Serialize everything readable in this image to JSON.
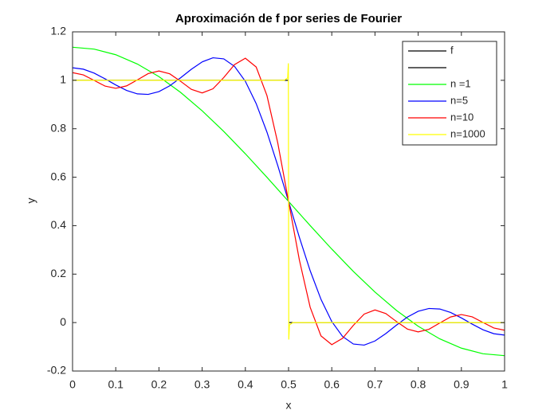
{
  "chart_data": {
    "type": "line",
    "title": "Aproximación de f por series de Fourier",
    "xlabel": "x",
    "ylabel": "y",
    "xlim": [
      0,
      1
    ],
    "ylim": [
      -0.2,
      1.2
    ],
    "xticks": [
      0,
      0.1,
      0.2,
      0.3,
      0.4,
      0.5,
      0.6,
      0.7,
      0.8,
      0.9,
      1
    ],
    "yticks": [
      -0.2,
      0,
      0.2,
      0.4,
      0.6,
      0.8,
      1,
      1.2
    ],
    "grid": false,
    "legend": "top-right",
    "series": [
      {
        "name": "f",
        "color": "#000000",
        "x": [
          0,
          0.5
        ],
        "values": [
          1,
          1
        ]
      },
      {
        "name": null,
        "color": "#000000",
        "x": [
          0.5,
          1
        ],
        "values": [
          0,
          0
        ]
      },
      {
        "name": "n =1",
        "color": "#00ff00",
        "x": [
          0,
          0.05,
          0.1,
          0.15,
          0.2,
          0.25,
          0.3,
          0.35,
          0.4,
          0.45,
          0.5,
          0.55,
          0.6,
          0.65,
          0.7,
          0.75,
          0.8,
          0.85,
          0.9,
          0.95,
          1
        ],
        "values": [
          1.1366,
          1.1288,
          1.1055,
          1.0672,
          1.015,
          0.9502,
          0.8742,
          0.789,
          0.6967,
          0.5996,
          0.5,
          0.4004,
          0.3033,
          0.211,
          0.1258,
          0.0498,
          -0.015,
          -0.0672,
          -0.1055,
          -0.1288,
          -0.1366
        ]
      },
      {
        "name": "n=5",
        "color": "#0000ff",
        "x": [
          0,
          0.025,
          0.05,
          0.075,
          0.1,
          0.125,
          0.15,
          0.175,
          0.2,
          0.225,
          0.25,
          0.275,
          0.3,
          0.325,
          0.35,
          0.375,
          0.4,
          0.425,
          0.45,
          0.475,
          0.5,
          0.525,
          0.55,
          0.575,
          0.6,
          0.625,
          0.65,
          0.675,
          0.7,
          0.725,
          0.75,
          0.775,
          0.8,
          0.825,
          0.85,
          0.875,
          0.9,
          0.925,
          0.95,
          0.975,
          1
        ],
        "values": [
          1.0517,
          1.0459,
          1.0297,
          1.0063,
          0.9808,
          0.9583,
          0.944,
          0.9419,
          0.9533,
          0.9774,
          1.0103,
          1.0456,
          1.076,
          1.0929,
          1.0886,
          1.0573,
          0.9957,
          0.904,
          0.7859,
          0.6482,
          0.5,
          0.3518,
          0.2141,
          0.096,
          0.0043,
          -0.0573,
          -0.0886,
          -0.0929,
          -0.076,
          -0.0456,
          -0.0103,
          0.0226,
          0.0467,
          0.0581,
          0.056,
          0.0417,
          0.0192,
          -0.0063,
          -0.0297,
          -0.0459,
          -0.0517
        ]
      },
      {
        "name": "n=10",
        "color": "#ff0000",
        "x": [
          0,
          0.025,
          0.05,
          0.075,
          0.1,
          0.125,
          0.15,
          0.175,
          0.2,
          0.225,
          0.25,
          0.275,
          0.3,
          0.325,
          0.35,
          0.375,
          0.4,
          0.425,
          0.45,
          0.475,
          0.5,
          0.525,
          0.55,
          0.575,
          0.6,
          0.625,
          0.65,
          0.675,
          0.7,
          0.725,
          0.75,
          0.775,
          0.8,
          0.825,
          0.85,
          0.875,
          0.9,
          0.925,
          0.95,
          0.975,
          1
        ],
        "values": [
          1.0315,
          1.0222,
          0.9995,
          0.9764,
          0.967,
          0.9769,
          1.0017,
          1.0276,
          1.0386,
          1.0267,
          0.996,
          0.9628,
          0.9479,
          0.965,
          1.0114,
          1.065,
          1.0912,
          1.055,
          0.9368,
          0.7416,
          0.5,
          0.2584,
          0.0632,
          -0.055,
          -0.0912,
          -0.065,
          -0.0114,
          0.035,
          0.0521,
          0.0372,
          0.004,
          -0.0267,
          -0.0386,
          -0.0276,
          -0.0017,
          0.0231,
          0.033,
          0.0236,
          0.0005,
          -0.0222,
          -0.0315
        ]
      },
      {
        "name": "n=1000",
        "color": "#ffff00",
        "x": [
          0,
          0.49,
          0.498,
          0.4995,
          0.5,
          0.5005,
          0.502,
          0.51,
          1
        ],
        "values": [
          1,
          1,
          1.01,
          1.07,
          0.5,
          -0.07,
          -0.01,
          0,
          0
        ]
      }
    ]
  }
}
